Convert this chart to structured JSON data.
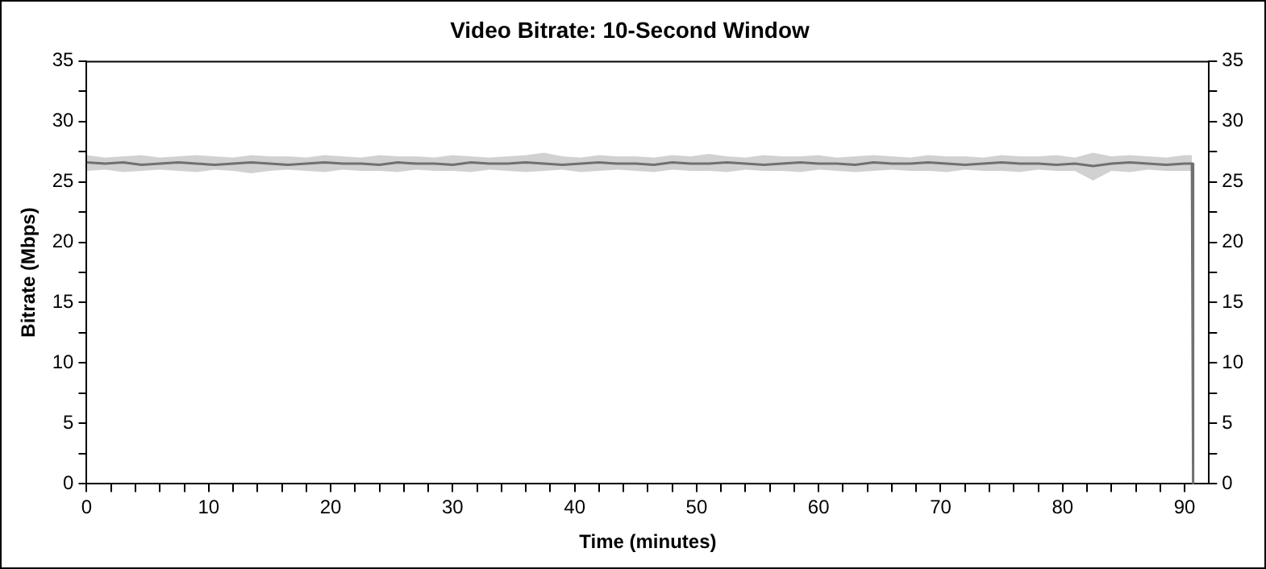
{
  "chart_data": {
    "type": "line",
    "title": "Video Bitrate: 10-Second Window",
    "xlabel": "Time (minutes)",
    "ylabel": "Bitrate (Mbps)",
    "xlim": [
      0,
      92
    ],
    "xticks": [
      0,
      {
        "value": 2,
        "label": null
      },
      {
        "value": 4,
        "label": null
      },
      {
        "value": 6,
        "label": null
      },
      {
        "value": 8,
        "label": null
      },
      10,
      {
        "value": 12,
        "label": null
      },
      {
        "value": 14,
        "label": null
      },
      {
        "value": 16,
        "label": null
      },
      {
        "value": 18,
        "label": null
      },
      20,
      {
        "value": 22,
        "label": null
      },
      {
        "value": 24,
        "label": null
      },
      {
        "value": 26,
        "label": null
      },
      {
        "value": 28,
        "label": null
      },
      30,
      {
        "value": 32,
        "label": null
      },
      {
        "value": 34,
        "label": null
      },
      {
        "value": 36,
        "label": null
      },
      {
        "value": 38,
        "label": null
      },
      40,
      {
        "value": 42,
        "label": null
      },
      {
        "value": 44,
        "label": null
      },
      {
        "value": 46,
        "label": null
      },
      {
        "value": 48,
        "label": null
      },
      50,
      {
        "value": 52,
        "label": null
      },
      {
        "value": 54,
        "label": null
      },
      {
        "value": 56,
        "label": null
      },
      {
        "value": 58,
        "label": null
      },
      60,
      {
        "value": 62,
        "label": null
      },
      {
        "value": 64,
        "label": null
      },
      {
        "value": 66,
        "label": null
      },
      {
        "value": 68,
        "label": null
      },
      70,
      {
        "value": 72,
        "label": null
      },
      {
        "value": 74,
        "label": null
      },
      {
        "value": 76,
        "label": null
      },
      {
        "value": 78,
        "label": null
      },
      80,
      {
        "value": 82,
        "label": null
      },
      {
        "value": 84,
        "label": null
      },
      {
        "value": 86,
        "label": null
      },
      {
        "value": 88,
        "label": null
      },
      90
    ],
    "ylim": [
      0,
      35
    ],
    "yticks": [
      0,
      {
        "value": 2.5,
        "label": null
      },
      5,
      {
        "value": 7.5,
        "label": null
      },
      10,
      {
        "value": 12.5,
        "label": null
      },
      15,
      {
        "value": 17.5,
        "label": null
      },
      20,
      {
        "value": 22.5,
        "label": null
      },
      25,
      {
        "value": 27.5,
        "label": null
      },
      30,
      {
        "value": 32.5,
        "label": null
      },
      35
    ],
    "y2lim": [
      0,
      35
    ],
    "y2ticks": [
      0,
      {
        "value": 2.5,
        "label": null
      },
      5,
      {
        "value": 7.5,
        "label": null
      },
      10,
      {
        "value": 12.5,
        "label": null
      },
      15,
      {
        "value": 17.5,
        "label": null
      },
      20,
      {
        "value": 22.5,
        "label": null
      },
      25,
      {
        "value": 27.5,
        "label": null
      },
      30,
      {
        "value": 32.5,
        "label": null
      },
      35
    ],
    "grid": false,
    "legend": false,
    "marker": "none",
    "line_style": "solid",
    "series": [
      {
        "color": "#707070",
        "x": [
          0,
          1.5,
          3,
          4.5,
          6,
          7.5,
          9,
          10.5,
          12,
          13.5,
          15,
          16.5,
          18,
          19.5,
          21,
          22.5,
          24,
          25.5,
          27,
          28.5,
          30,
          31.5,
          33,
          34.5,
          36,
          37.5,
          39,
          40.5,
          42,
          43.5,
          45,
          46.5,
          48,
          49.5,
          51,
          52.5,
          54,
          55.5,
          57,
          58.5,
          60,
          61.5,
          63,
          64.5,
          66,
          67.5,
          69,
          70.5,
          72,
          73.5,
          75,
          76.5,
          78,
          79.5,
          81,
          82.5,
          84,
          85.5,
          87,
          88.5,
          90,
          90.6,
          90.7
        ],
        "values": [
          26.6,
          26.5,
          26.6,
          26.4,
          26.5,
          26.6,
          26.5,
          26.4,
          26.5,
          26.6,
          26.5,
          26.4,
          26.5,
          26.6,
          26.5,
          26.5,
          26.4,
          26.6,
          26.5,
          26.5,
          26.4,
          26.6,
          26.5,
          26.5,
          26.6,
          26.5,
          26.4,
          26.5,
          26.6,
          26.5,
          26.5,
          26.4,
          26.6,
          26.5,
          26.5,
          26.6,
          26.5,
          26.4,
          26.5,
          26.6,
          26.5,
          26.5,
          26.4,
          26.6,
          26.5,
          26.5,
          26.6,
          26.5,
          26.4,
          26.5,
          26.6,
          26.5,
          26.5,
          26.4,
          26.5,
          26.3,
          26.5,
          26.6,
          26.5,
          26.4,
          26.5,
          26.5,
          0
        ],
        "lower": [
          25.9,
          26.0,
          25.8,
          25.9,
          26.0,
          25.9,
          25.8,
          26.0,
          25.9,
          25.7,
          25.9,
          26.0,
          25.9,
          25.8,
          26.0,
          25.9,
          25.9,
          25.8,
          26.0,
          25.9,
          25.9,
          25.8,
          26.0,
          25.9,
          25.8,
          25.9,
          26.0,
          25.8,
          25.9,
          26.0,
          25.9,
          25.8,
          26.0,
          25.9,
          25.9,
          25.8,
          26.0,
          25.9,
          25.9,
          25.8,
          26.0,
          25.9,
          25.8,
          25.9,
          26.0,
          25.9,
          25.9,
          25.8,
          26.0,
          25.9,
          25.9,
          25.8,
          26.0,
          25.9,
          25.9,
          25.1,
          25.9,
          25.8,
          26.0,
          25.9,
          25.9,
          25.9,
          0
        ],
        "upper": [
          27.2,
          27.0,
          27.1,
          27.2,
          27.0,
          27.1,
          27.2,
          27.1,
          27.0,
          27.2,
          27.1,
          27.1,
          27.0,
          27.2,
          27.1,
          27.0,
          27.2,
          27.1,
          27.1,
          27.0,
          27.2,
          27.1,
          27.0,
          27.1,
          27.2,
          27.4,
          27.1,
          27.0,
          27.2,
          27.1,
          27.1,
          27.0,
          27.2,
          27.1,
          27.3,
          27.1,
          27.0,
          27.2,
          27.1,
          27.1,
          27.2,
          27.0,
          27.1,
          27.2,
          27.1,
          27.0,
          27.2,
          27.1,
          27.1,
          27.0,
          27.2,
          27.1,
          27.1,
          27.2,
          27.0,
          27.4,
          27.1,
          27.2,
          27.1,
          27.0,
          27.2,
          27.2,
          0
        ]
      }
    ]
  }
}
